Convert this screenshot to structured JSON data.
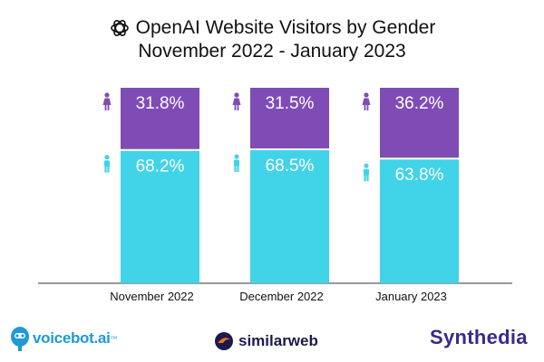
{
  "chart_data": {
    "type": "bar",
    "stacked": true,
    "title": "OpenAI Website Visitors by Gender",
    "subtitle": "November 2022 - January 2023",
    "categories": [
      "November 2022",
      "December 2022",
      "January 2023"
    ],
    "series": [
      {
        "values": [
          68.2,
          68.5,
          63.8
        ],
        "labels": [
          "68.2%",
          "68.5%",
          "63.8%"
        ],
        "color": "#41d3e8",
        "icon": "male-icon"
      },
      {
        "values": [
          31.8,
          31.5,
          36.2
        ],
        "labels": [
          "31.8%",
          "31.5%",
          "36.2%"
        ],
        "color": "#7f4cb5",
        "icon": "female-icon"
      }
    ],
    "ylim": [
      0,
      100
    ],
    "grid": false,
    "legend": "none"
  },
  "logos": {
    "title_icon": "openai-logo-icon",
    "voicebot": "voicebot.ai",
    "voicebot_tm": "™",
    "similarweb": "similarweb",
    "synthedia": "Synthedia"
  }
}
